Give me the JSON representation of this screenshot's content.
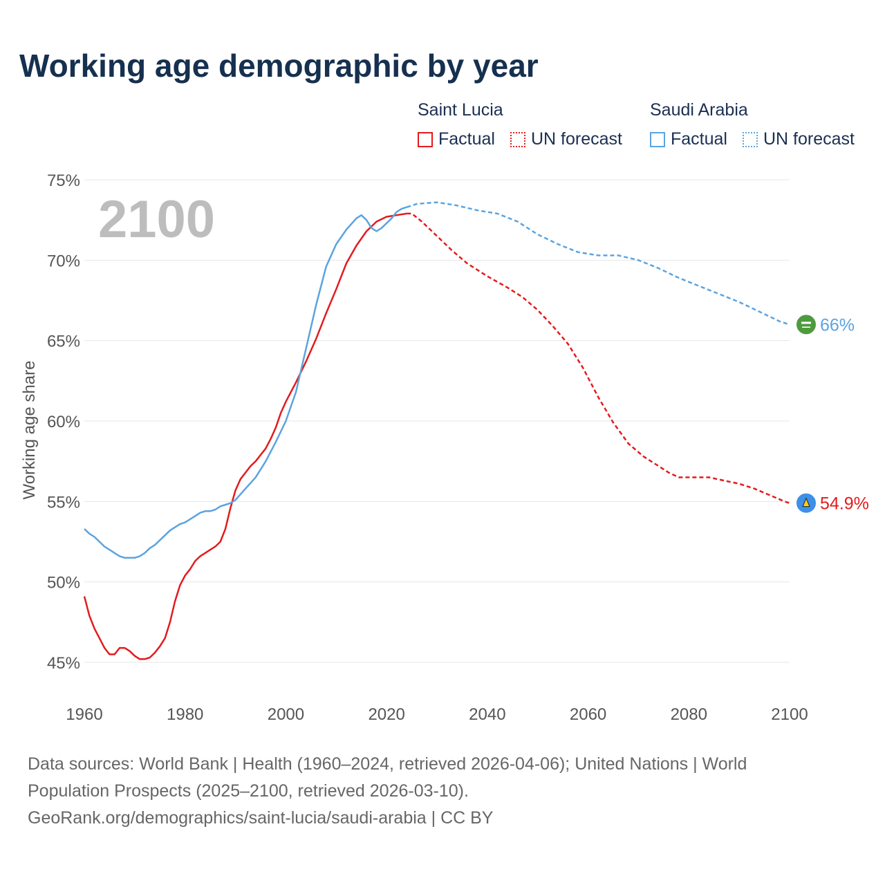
{
  "title": "Working age demographic by year",
  "legend": {
    "groups": [
      {
        "name": "Saint Lucia",
        "factual": "Factual",
        "forecast": "UN forecast",
        "color": "#e31a1c"
      },
      {
        "name": "Saudi Arabia",
        "factual": "Factual",
        "forecast": "UN forecast",
        "color": "#5ba3e0"
      }
    ]
  },
  "year_label": "2100",
  "end_labels": {
    "saint_lucia": "54.9%",
    "saudi_arabia": "66%"
  },
  "footer": {
    "line1": "Data sources: World Bank | Health (1960–2024, retrieved 2026-04-06); United Nations | World",
    "line2": "Population Prospects (2025–2100, retrieved 2026-03-10).",
    "line3": "GeoRank.org/demographics/saint-lucia/saudi-arabia | CC BY"
  },
  "chart_data": {
    "type": "line",
    "title": "Working age demographic by year",
    "xlabel": "",
    "ylabel": "Working age share",
    "xlim": [
      1960,
      2100
    ],
    "ylim": [
      45,
      75
    ],
    "xticks": [
      "1960",
      "1980",
      "2000",
      "2020",
      "2040",
      "2060",
      "2080",
      "2100"
    ],
    "yticks": [
      "45%",
      "50%",
      "55%",
      "60%",
      "65%",
      "70%",
      "75%"
    ],
    "grid": true,
    "legend_position": "top-right",
    "factual_end_year": 2024,
    "series": [
      {
        "name": "Saint Lucia",
        "color": "#e31a1c",
        "x": [
          1960,
          1961,
          1962,
          1963,
          1964,
          1965,
          1966,
          1967,
          1968,
          1969,
          1970,
          1971,
          1972,
          1973,
          1974,
          1975,
          1976,
          1977,
          1978,
          1979,
          1980,
          1981,
          1982,
          1983,
          1984,
          1985,
          1986,
          1987,
          1988,
          1989,
          1990,
          1991,
          1992,
          1993,
          1994,
          1995,
          1996,
          1997,
          1998,
          1999,
          2000,
          2002,
          2004,
          2006,
          2008,
          2010,
          2012,
          2014,
          2016,
          2018,
          2020,
          2022,
          2024,
          2025,
          2027,
          2030,
          2033,
          2036,
          2040,
          2044,
          2047,
          2050,
          2053,
          2056,
          2059,
          2062,
          2065,
          2068,
          2071,
          2074,
          2076,
          2078,
          2081,
          2084,
          2087,
          2090,
          2093,
          2096,
          2099,
          2100
        ],
        "values": [
          49.1,
          47.9,
          47.1,
          46.5,
          45.9,
          45.5,
          45.5,
          45.9,
          45.9,
          45.7,
          45.4,
          45.2,
          45.2,
          45.3,
          45.6,
          46.0,
          46.5,
          47.5,
          48.8,
          49.8,
          50.4,
          50.8,
          51.3,
          51.6,
          51.8,
          52.0,
          52.2,
          52.5,
          53.3,
          54.6,
          55.7,
          56.4,
          56.8,
          57.2,
          57.5,
          57.9,
          58.3,
          58.9,
          59.6,
          60.5,
          61.2,
          62.4,
          63.7,
          65.1,
          66.7,
          68.2,
          69.8,
          70.9,
          71.8,
          72.4,
          72.7,
          72.8,
          72.9,
          72.9,
          72.4,
          71.5,
          70.6,
          69.8,
          69.0,
          68.3,
          67.7,
          66.9,
          65.9,
          64.8,
          63.3,
          61.5,
          59.9,
          58.6,
          57.8,
          57.2,
          56.8,
          56.5,
          56.5,
          56.5,
          56.3,
          56.1,
          55.8,
          55.4,
          55.0,
          54.9
        ]
      },
      {
        "name": "Saudi Arabia",
        "color": "#5ba3e0",
        "x": [
          1960,
          1961,
          1962,
          1963,
          1964,
          1965,
          1966,
          1967,
          1968,
          1969,
          1970,
          1971,
          1972,
          1973,
          1974,
          1975,
          1976,
          1977,
          1978,
          1979,
          1980,
          1981,
          1982,
          1983,
          1984,
          1985,
          1986,
          1987,
          1988,
          1989,
          1990,
          1992,
          1994,
          1996,
          1998,
          2000,
          2002,
          2004,
          2006,
          2008,
          2010,
          2012,
          2014,
          2015,
          2016,
          2017,
          2018,
          2019,
          2020,
          2021,
          2022,
          2023,
          2024,
          2026,
          2030,
          2034,
          2038,
          2042,
          2046,
          2050,
          2054,
          2058,
          2062,
          2066,
          2070,
          2074,
          2078,
          2082,
          2086,
          2090,
          2094,
          2098,
          2100
        ],
        "values": [
          53.3,
          53.0,
          52.8,
          52.5,
          52.2,
          52.0,
          51.8,
          51.6,
          51.5,
          51.5,
          51.5,
          51.6,
          51.8,
          52.1,
          52.3,
          52.6,
          52.9,
          53.2,
          53.4,
          53.6,
          53.7,
          53.9,
          54.1,
          54.3,
          54.4,
          54.4,
          54.5,
          54.7,
          54.8,
          54.9,
          55.1,
          55.8,
          56.5,
          57.5,
          58.7,
          60.0,
          61.8,
          64.5,
          67.2,
          69.6,
          71.0,
          71.9,
          72.6,
          72.8,
          72.5,
          72.0,
          71.8,
          72.0,
          72.3,
          72.6,
          73.0,
          73.2,
          73.3,
          73.5,
          73.6,
          73.4,
          73.1,
          72.9,
          72.4,
          71.6,
          71.0,
          70.5,
          70.3,
          70.3,
          70.0,
          69.5,
          68.9,
          68.4,
          67.9,
          67.4,
          66.8,
          66.2,
          66.0
        ]
      }
    ]
  }
}
